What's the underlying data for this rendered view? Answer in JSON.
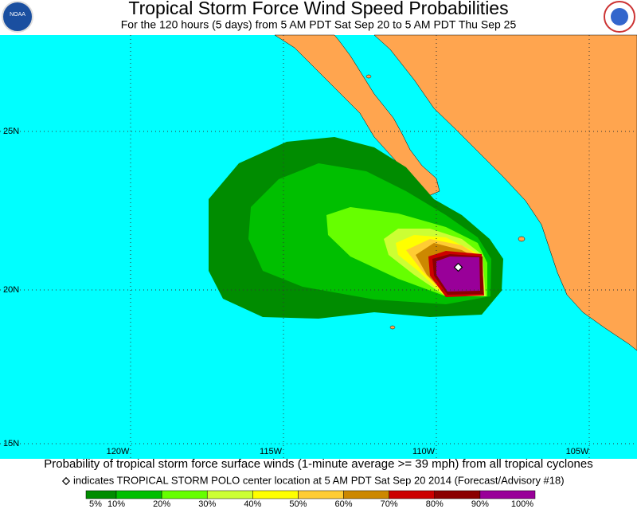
{
  "header": {
    "title": "Tropical Storm Force Wind Speed Probabilities",
    "subtitle": "For the 120 hours (5 days) from 5 AM PDT Sat Sep 20 to 5 AM PDT Thu Sep 25",
    "left_logo": "NOAA"
  },
  "map": {
    "lat_labels": [
      "25N",
      "20N",
      "15N"
    ],
    "lon_labels": [
      "120W",
      "115W",
      "110W",
      "105W"
    ]
  },
  "footer": {
    "caption": "Probability of tropical storm force surface winds (1-minute average >= 39 mph) from all tropical cyclones",
    "center_note": "indicates TROPICAL STORM POLO center location at 5 AM PDT Sat Sep 20 2014 (Forecast/Advisory #18)"
  },
  "legend": {
    "labels": [
      "5%",
      "10%",
      "20%",
      "30%",
      "40%",
      "50%",
      "60%",
      "70%",
      "80%",
      "90%",
      "100%"
    ],
    "colors": [
      "#008c00",
      "#00bf00",
      "#66ff00",
      "#ccff33",
      "#ffff00",
      "#ffcc33",
      "#cc8800",
      "#cc0000",
      "#8b0000",
      "#990099"
    ]
  }
}
